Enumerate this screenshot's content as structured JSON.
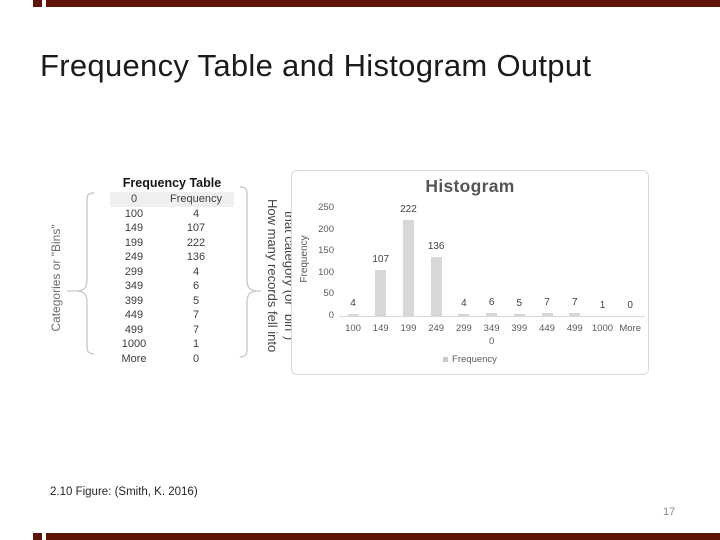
{
  "slide": {
    "title": "Frequency Table and Histogram Output",
    "footer": "2.10 Figure: (Smith, K. 2016)",
    "page_number": "17",
    "accent_color": "#5e1507"
  },
  "annotations": {
    "bins_label": "Categories or \"Bins\"",
    "records_line1": "How many records fell into",
    "records_line2": "that category (or \"bin\")"
  },
  "chart_data": [
    {
      "type": "table",
      "title": "Frequency Table",
      "header": [
        "0",
        "Frequency"
      ],
      "rows": [
        [
          "100",
          "4"
        ],
        [
          "149",
          "107"
        ],
        [
          "199",
          "222"
        ],
        [
          "249",
          "136"
        ],
        [
          "299",
          "4"
        ],
        [
          "349",
          "6"
        ],
        [
          "399",
          "5"
        ],
        [
          "449",
          "7"
        ],
        [
          "499",
          "7"
        ],
        [
          "1000",
          "1"
        ],
        [
          "More",
          "0"
        ]
      ]
    },
    {
      "type": "bar",
      "title": "Histogram",
      "ylabel": "Frequency",
      "categories": [
        "100",
        "149",
        "199",
        "249",
        "299",
        "349",
        "399",
        "449",
        "499",
        "1000",
        "More"
      ],
      "values": [
        4,
        107,
        222,
        136,
        4,
        6,
        5,
        7,
        7,
        1,
        0
      ],
      "x_sub_labels": [
        "",
        "",
        "",
        "",
        "",
        "0",
        "",
        "",
        "",
        "",
        ""
      ],
      "yticks": [
        0,
        50,
        100,
        150,
        200,
        250
      ],
      "ylim": [
        0,
        250
      ],
      "grid": false,
      "legend": [
        "Frequency"
      ],
      "legend_position": "bottom",
      "bar_color": "#d7d7d7"
    }
  ]
}
